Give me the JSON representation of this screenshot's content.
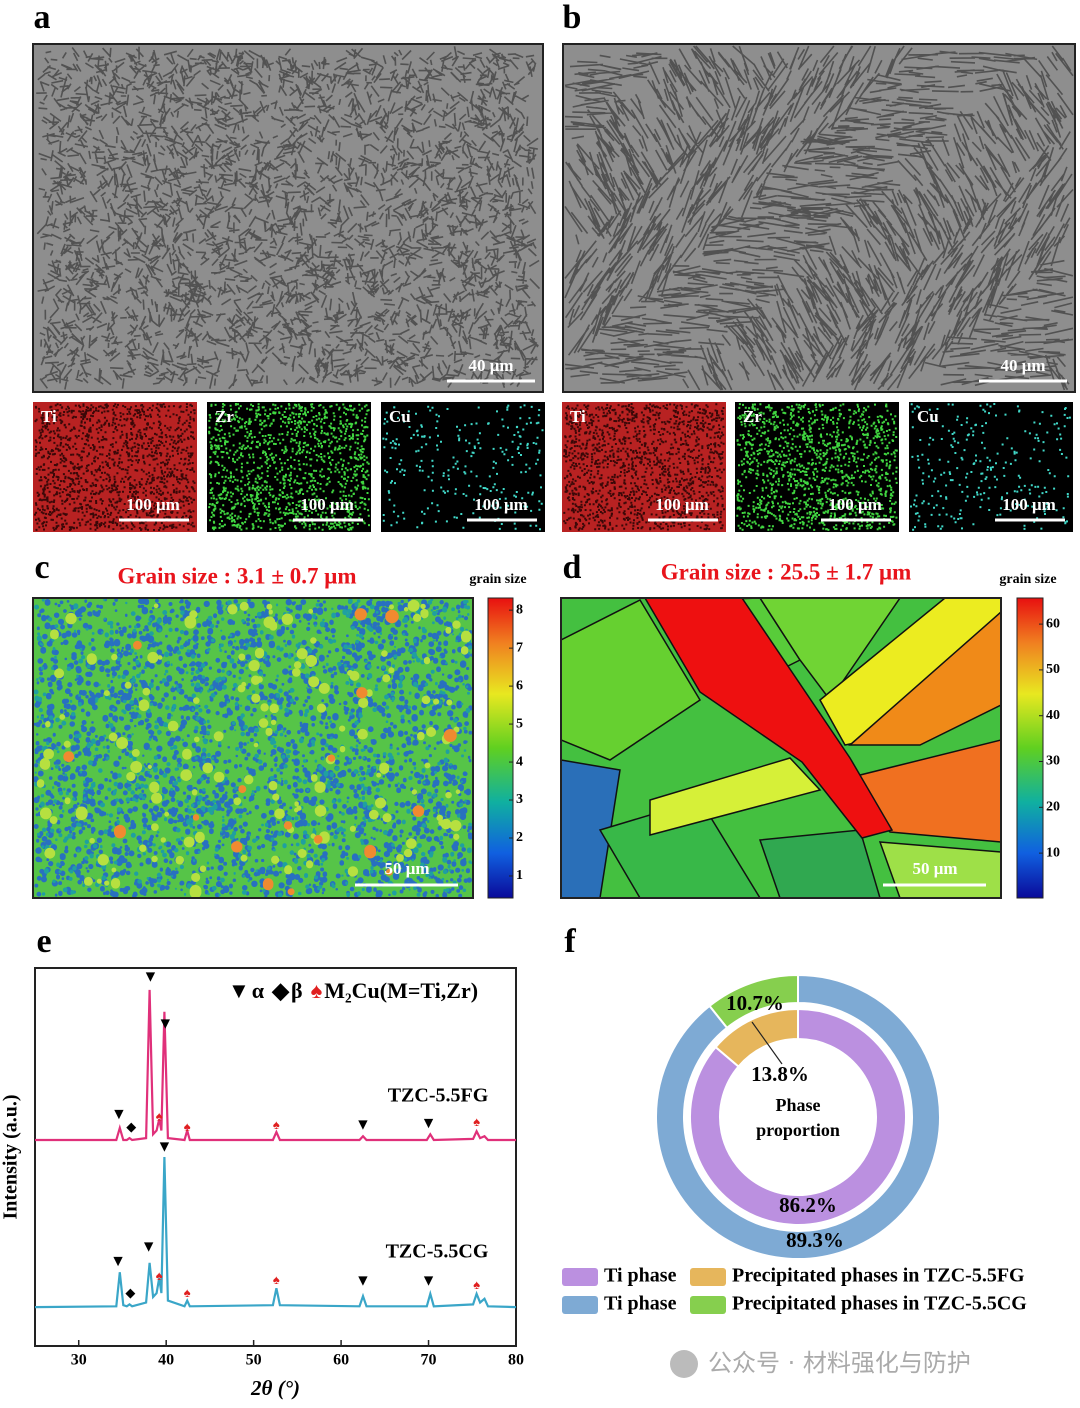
{
  "panel_labels": [
    "a",
    "b",
    "c",
    "d",
    "e",
    "f"
  ],
  "sem": [
    {
      "scale_bar": "40 μm",
      "maps": [
        {
          "element": "Ti",
          "scale_bar": "100 μm"
        },
        {
          "element": "Zr",
          "scale_bar": "100 μm"
        },
        {
          "element": "Cu",
          "scale_bar": "100 μm"
        }
      ]
    },
    {
      "scale_bar": "40 μm",
      "maps": [
        {
          "element": "Ti",
          "scale_bar": "100 μm"
        },
        {
          "element": "Zr",
          "scale_bar": "100 μm"
        },
        {
          "element": "Cu",
          "scale_bar": "100 μm"
        }
      ]
    }
  ],
  "grain_maps": [
    {
      "title": "Grain size : 3.1 ± 0.7 μm",
      "colorbar_label": "grain size",
      "clim": [
        0.42,
        8.32
      ],
      "ticks": [
        1,
        2,
        3,
        4,
        5,
        6,
        7,
        8
      ],
      "scale_bar": "50 μm"
    },
    {
      "title": "Grain size : 25.5 ± 1.7 μm",
      "colorbar_label": "grain size",
      "clim": [
        0.2,
        65.7
      ],
      "ticks": [
        10,
        20,
        30,
        40,
        50,
        60
      ],
      "scale_bar": "50 μm"
    }
  ],
  "chart_data": [
    {
      "type": "line",
      "xlabel": "2θ (°)",
      "ylabel": "Intensity (a.u.)",
      "xlim": [
        25,
        80
      ],
      "xticks": [
        30,
        40,
        50,
        60,
        70,
        80
      ],
      "ylim": [
        0,
        100
      ],
      "legend": [
        {
          "symbol": "▼",
          "label": "α",
          "color": "#000000"
        },
        {
          "symbol": "◆",
          "label": "β",
          "color": "#000000"
        },
        {
          "symbol": "♠",
          "label": "M₂Cu(M=Ti,Zr)",
          "color": "#e02020"
        }
      ],
      "x": [
        25,
        34.3,
        34.7,
        35.1,
        35.5,
        35.8,
        36.1,
        37.7,
        38.1,
        38.5,
        38.9,
        39.2,
        39.45,
        39.8,
        40.2,
        42.1,
        42.4,
        42.7,
        52.2,
        52.6,
        53.0,
        62.1,
        62.5,
        62.9,
        69.8,
        70.2,
        70.6,
        75.1,
        75.5,
        75.9,
        76.4,
        76.8,
        80
      ],
      "series": [
        {
          "name": "TZC-5.5FG",
          "color": "#e0307a",
          "values": [
            54.5,
            54.5,
            57.7,
            54.5,
            54.5,
            55,
            54.5,
            55,
            94.2,
            56,
            57,
            60,
            57,
            88.4,
            55,
            54.5,
            57,
            54.5,
            54.5,
            56.6,
            54.5,
            54.5,
            55.5,
            54.5,
            54.5,
            56,
            54.5,
            54.8,
            56.8,
            55,
            55.5,
            54.5,
            54.5
          ],
          "markers": [
            {
              "symbol": "▼",
              "x": 38.2,
              "y": 97.4
            },
            {
              "symbol": "▼",
              "x": 39.9,
              "y": 85
            },
            {
              "symbol": "▼",
              "x": 34.6,
              "y": 61
            },
            {
              "symbol": "◆",
              "x": 36.0,
              "y": 57.7
            },
            {
              "symbol": "♠",
              "x": 39.2,
              "y": 60.5
            },
            {
              "symbol": "♠",
              "x": 42.4,
              "y": 57.7
            },
            {
              "symbol": "♠",
              "x": 52.6,
              "y": 58.2
            },
            {
              "symbol": "▼",
              "x": 62.5,
              "y": 58.2
            },
            {
              "symbol": "▼",
              "x": 70.0,
              "y": 58.7
            },
            {
              "symbol": "♠",
              "x": 75.5,
              "y": 59
            }
          ]
        },
        {
          "name": "TZC-5.5CG",
          "color": "#3aa6c8",
          "values": [
            10.3,
            10.5,
            19.5,
            10.8,
            10.5,
            11,
            10.5,
            11.5,
            22,
            13,
            14,
            18,
            14,
            50,
            12,
            10.5,
            12,
            10.5,
            10.8,
            15.3,
            10.8,
            10.5,
            13.2,
            10.5,
            10.5,
            13.8,
            10.5,
            11,
            13.8,
            11.5,
            12.5,
            10.5,
            10.3
          ],
          "markers": [
            {
              "symbol": "▼",
              "x": 39.8,
              "y": 52.4
            },
            {
              "symbol": "▼",
              "x": 38.0,
              "y": 26
            },
            {
              "symbol": "▼",
              "x": 34.5,
              "y": 22.2
            },
            {
              "symbol": "◆",
              "x": 35.9,
              "y": 13.8
            },
            {
              "symbol": "♠",
              "x": 39.2,
              "y": 18.3
            },
            {
              "symbol": "♠",
              "x": 42.4,
              "y": 13.8
            },
            {
              "symbol": "♠",
              "x": 52.6,
              "y": 17.2
            },
            {
              "symbol": "▼",
              "x": 62.5,
              "y": 17
            },
            {
              "symbol": "▼",
              "x": 70.0,
              "y": 17
            },
            {
              "symbol": "♠",
              "x": 75.5,
              "y": 15.9
            }
          ]
        }
      ]
    },
    {
      "type": "donut",
      "center_label": [
        "Phase",
        "proportion"
      ],
      "rings": [
        {
          "labels": [
            "Ti phase",
            "Precipitated phases in TZC-5.5FG"
          ],
          "values": [
            86.2,
            13.8
          ],
          "value_labels": [
            "86.2%",
            "13.8%"
          ],
          "colors": [
            "#bb90e0",
            "#e6b65c"
          ]
        },
        {
          "labels": [
            "Ti phase",
            "Precipitated phases in TZC-5.5CG"
          ],
          "values": [
            89.3,
            10.7
          ],
          "value_labels": [
            "89.3%",
            "10.7%"
          ],
          "colors": [
            "#7eaad4",
            "#86cf4e"
          ]
        }
      ]
    }
  ],
  "watermark": "公众号 · 材料强化与防护"
}
